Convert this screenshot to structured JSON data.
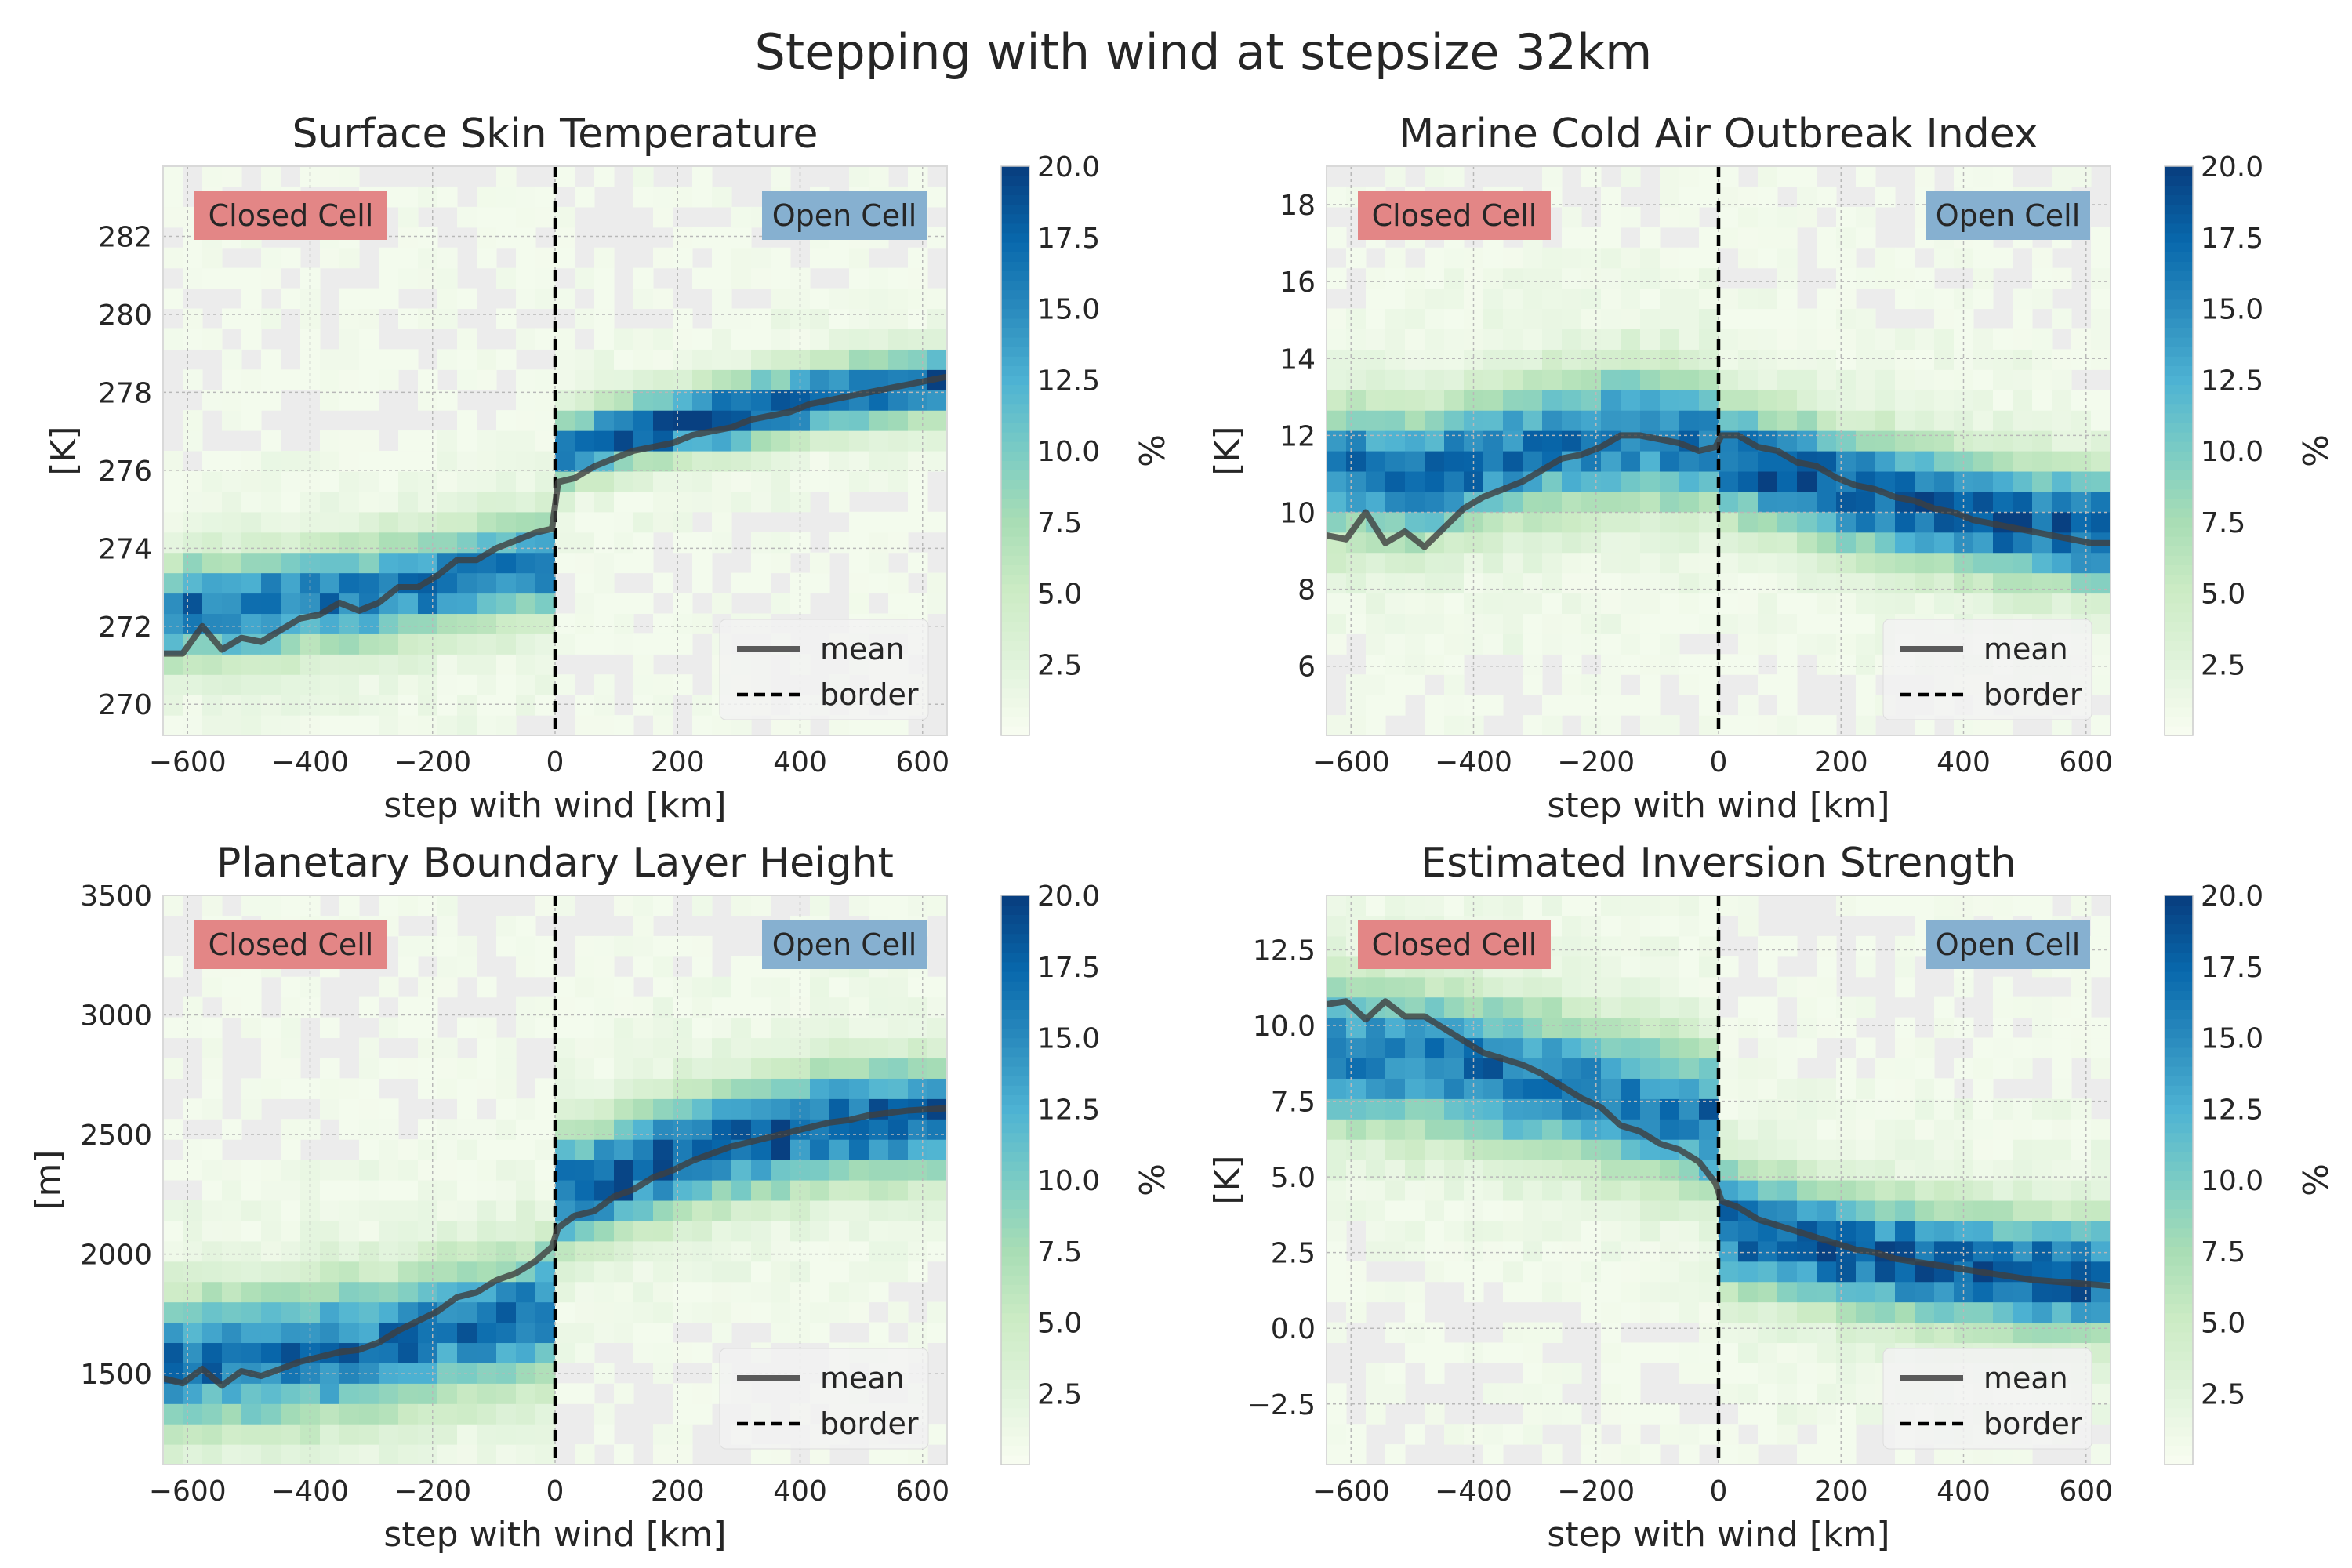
{
  "figure": {
    "title": "Stepping with wind at stepsize 32km",
    "background": "#ffffff",
    "colormap": [
      "#f7fcf0",
      "#e0f3db",
      "#ccebc5",
      "#a8ddb5",
      "#7bccc4",
      "#4eb3d3",
      "#2b8cbe",
      "#0868ac",
      "#084081"
    ],
    "empty_cell_color": "#ececec",
    "closed_color": "#e38686",
    "open_color": "#86b0d0"
  },
  "chart_data": [
    {
      "type": "heatmap",
      "title": "Surface Skin Temperature",
      "xlabel": "step with wind [km]",
      "ylabel": "[K]",
      "xlim": [
        -640,
        640
      ],
      "ylim": [
        269.2,
        283.8
      ],
      "xticks": [
        -600,
        -400,
        -200,
        0,
        200,
        400,
        600
      ],
      "yticks": [
        270,
        272,
        274,
        276,
        278,
        280,
        282
      ],
      "ytick_labels": [
        "270",
        "272",
        "274",
        "276",
        "278",
        "280",
        "282"
      ],
      "grid": true,
      "colorbar": {
        "label": "%",
        "range": [
          0,
          20
        ],
        "ticks": [
          "2.5",
          "5.0",
          "7.5",
          "10.0",
          "12.5",
          "15.0",
          "17.5",
          "20.0"
        ]
      },
      "labels": {
        "closed": "Closed Cell",
        "open": "Open Cell"
      },
      "legend": {
        "mean": "mean",
        "border": "border",
        "position": "bottom-right"
      },
      "series_mean": {
        "x": [
          -640,
          -608,
          -576,
          -544,
          -512,
          -480,
          -448,
          -416,
          -384,
          -352,
          -320,
          -288,
          -256,
          -224,
          -192,
          -160,
          -128,
          -96,
          -64,
          -32,
          -5,
          5,
          32,
          64,
          96,
          128,
          160,
          192,
          224,
          256,
          288,
          320,
          352,
          384,
          416,
          448,
          480,
          512,
          544,
          576,
          608,
          640
        ],
        "y": [
          271.3,
          271.3,
          272.0,
          271.4,
          271.7,
          271.6,
          271.9,
          272.2,
          272.3,
          272.6,
          272.4,
          272.6,
          273.0,
          273.0,
          273.3,
          273.7,
          273.7,
          274.0,
          274.2,
          274.4,
          274.5,
          275.7,
          275.8,
          276.1,
          276.3,
          276.5,
          276.6,
          276.7,
          276.9,
          277.0,
          277.1,
          277.3,
          277.4,
          277.5,
          277.7,
          277.8,
          277.9,
          278.0,
          278.1,
          278.2,
          278.3,
          278.4
        ]
      },
      "band_left": {
        "center": 273.0,
        "spread": 1.2
      },
      "band_right": {
        "center": 278.0,
        "spread": 0.8
      }
    },
    {
      "type": "heatmap",
      "title": "Marine Cold Air Outbreak Index",
      "xlabel": "step with wind [km]",
      "ylabel": "[K]",
      "xlim": [
        -640,
        640
      ],
      "ylim": [
        4.2,
        19.0
      ],
      "xticks": [
        -600,
        -400,
        -200,
        0,
        200,
        400,
        600
      ],
      "yticks": [
        6,
        8,
        10,
        12,
        14,
        16,
        18
      ],
      "ytick_labels": [
        "6",
        "8",
        "10",
        "12",
        "14",
        "16",
        "18"
      ],
      "grid": true,
      "colorbar": {
        "label": "%",
        "range": [
          0,
          20
        ],
        "ticks": [
          "2.5",
          "5.0",
          "7.5",
          "10.0",
          "12.5",
          "15.0",
          "17.5",
          "20.0"
        ]
      },
      "labels": {
        "closed": "Closed Cell",
        "open": "Open Cell"
      },
      "legend": {
        "mean": "mean",
        "border": "border",
        "position": "bottom-right"
      },
      "series_mean": {
        "x": [
          -640,
          -608,
          -576,
          -544,
          -512,
          -480,
          -448,
          -416,
          -384,
          -352,
          -320,
          -288,
          -256,
          -224,
          -192,
          -160,
          -128,
          -96,
          -64,
          -32,
          -5,
          5,
          32,
          64,
          96,
          128,
          160,
          192,
          224,
          256,
          288,
          320,
          352,
          384,
          416,
          448,
          480,
          512,
          544,
          576,
          608,
          640
        ],
        "y": [
          9.4,
          9.3,
          10.0,
          9.2,
          9.5,
          9.1,
          9.6,
          10.1,
          10.4,
          10.6,
          10.8,
          11.1,
          11.4,
          11.5,
          11.7,
          12.0,
          12.0,
          11.9,
          11.8,
          11.6,
          11.7,
          12.0,
          12.0,
          11.7,
          11.6,
          11.3,
          11.2,
          10.9,
          10.7,
          10.6,
          10.4,
          10.3,
          10.1,
          10.0,
          9.8,
          9.7,
          9.6,
          9.5,
          9.4,
          9.3,
          9.2,
          9.2
        ]
      },
      "band_left": {
        "center": 12.0,
        "spread": 1.6
      },
      "band_right": {
        "center": 10.2,
        "spread": 1.4
      }
    },
    {
      "type": "heatmap",
      "title": "Planetary Boundary Layer Height",
      "xlabel": "step with wind [km]",
      "ylabel": "[m]",
      "xlim": [
        -640,
        640
      ],
      "ylim": [
        1120,
        3500
      ],
      "xticks": [
        -600,
        -400,
        -200,
        0,
        200,
        400,
        600
      ],
      "yticks": [
        1500,
        2000,
        2500,
        3000,
        3500
      ],
      "ytick_labels": [
        "1500",
        "2000",
        "2500",
        "3000",
        "3500"
      ],
      "grid": true,
      "colorbar": {
        "label": "%",
        "range": [
          0,
          20
        ],
        "ticks": [
          "2.5",
          "5.0",
          "7.5",
          "10.0",
          "12.5",
          "15.0",
          "17.5",
          "20.0"
        ]
      },
      "labels": {
        "closed": "Closed Cell",
        "open": "Open Cell"
      },
      "legend": {
        "mean": "mean",
        "border": "border",
        "position": "bottom-right"
      },
      "series_mean": {
        "x": [
          -640,
          -608,
          -576,
          -544,
          -512,
          -480,
          -448,
          -416,
          -384,
          -352,
          -320,
          -288,
          -256,
          -224,
          -192,
          -160,
          -128,
          -96,
          -64,
          -32,
          -5,
          5,
          32,
          64,
          96,
          128,
          160,
          192,
          224,
          256,
          288,
          320,
          352,
          384,
          416,
          448,
          480,
          512,
          544,
          576,
          608,
          640
        ],
        "y": [
          1480,
          1460,
          1520,
          1450,
          1510,
          1490,
          1520,
          1550,
          1570,
          1590,
          1600,
          1630,
          1680,
          1720,
          1760,
          1820,
          1840,
          1890,
          1920,
          1970,
          2030,
          2110,
          2160,
          2180,
          2240,
          2270,
          2320,
          2350,
          2390,
          2420,
          2450,
          2470,
          2490,
          2510,
          2530,
          2550,
          2560,
          2580,
          2590,
          2600,
          2605,
          2610
        ]
      },
      "band_left": {
        "center": 1600,
        "spread": 260
      },
      "band_right": {
        "center": 2500,
        "spread": 220
      }
    },
    {
      "type": "heatmap",
      "title": "Estimated Inversion Strength",
      "xlabel": "step with wind [km]",
      "ylabel": "[K]",
      "xlim": [
        -640,
        640
      ],
      "ylim": [
        -4.5,
        14.3
      ],
      "xticks": [
        -600,
        -400,
        -200,
        0,
        200,
        400,
        600
      ],
      "yticks": [
        -2.5,
        0.0,
        2.5,
        5.0,
        7.5,
        10.0,
        12.5
      ],
      "ytick_labels": [
        "−2.5",
        "0.0",
        "2.5",
        "5.0",
        "7.5",
        "10.0",
        "12.5"
      ],
      "grid": true,
      "colorbar": {
        "label": "%",
        "range": [
          0,
          20
        ],
        "ticks": [
          "2.5",
          "5.0",
          "7.5",
          "10.0",
          "12.5",
          "15.0",
          "17.5",
          "20.0"
        ]
      },
      "labels": {
        "closed": "Closed Cell",
        "open": "Open Cell"
      },
      "legend": {
        "mean": "mean",
        "border": "border",
        "position": "bottom-right"
      },
      "series_mean": {
        "x": [
          -640,
          -608,
          -576,
          -544,
          -512,
          -480,
          -448,
          -416,
          -384,
          -352,
          -320,
          -288,
          -256,
          -224,
          -192,
          -160,
          -128,
          -96,
          -64,
          -32,
          -5,
          5,
          32,
          64,
          96,
          128,
          160,
          192,
          224,
          256,
          288,
          320,
          352,
          384,
          416,
          448,
          480,
          512,
          544,
          576,
          608,
          640
        ],
        "y": [
          10.7,
          10.8,
          10.2,
          10.8,
          10.3,
          10.3,
          9.9,
          9.5,
          9.1,
          8.9,
          8.7,
          8.4,
          8.0,
          7.6,
          7.3,
          6.7,
          6.5,
          6.1,
          5.9,
          5.5,
          4.8,
          4.2,
          4.0,
          3.6,
          3.4,
          3.2,
          3.0,
          2.8,
          2.6,
          2.5,
          2.3,
          2.2,
          2.1,
          2.0,
          1.9,
          1.8,
          1.7,
          1.6,
          1.55,
          1.5,
          1.45,
          1.4
        ]
      },
      "band_left": {
        "center": 8.0,
        "spread": 2.2
      },
      "band_right": {
        "center": 2.2,
        "spread": 1.8
      }
    }
  ]
}
